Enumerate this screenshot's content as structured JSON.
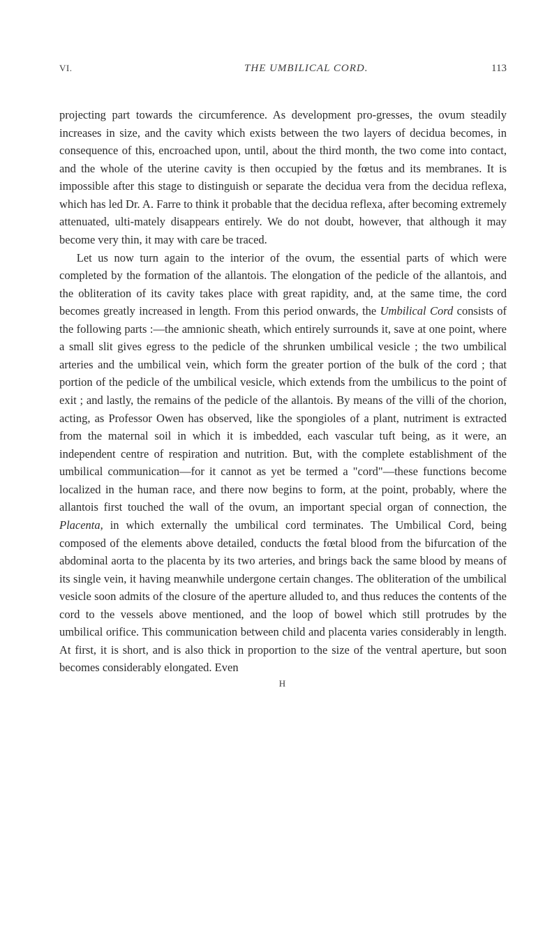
{
  "header": {
    "chapter": "VI.",
    "title": "THE UMBILICAL CORD.",
    "page": "113"
  },
  "paragraphs": {
    "p1": "projecting part towards the circumference. As development pro-gresses, the ovum steadily increases in size, and the cavity which exists between the two layers of decidua becomes, in consequence of this, encroached upon, until, about the third month, the two come into contact, and the whole of the uterine cavity is then occupied by the fœtus and its membranes. It is impossible after this stage to distinguish or separate the decidua vera from the decidua reflexa, which has led Dr. A. Farre to think it probable that the decidua reflexa, after becoming extremely attenuated, ulti-mately disappears entirely. We do not doubt, however, that although it may become very thin, it may with care be traced.",
    "p2_before_italic": "Let us now turn again to the interior of the ovum, the essential parts of which were completed by the formation of the allantois. The elongation of the pedicle of the allantois, and the obliteration of its cavity takes place with great rapidity, and, at the same time, the cord becomes greatly increased in length. From this period onwards, the ",
    "p2_italic1": "Umbilical Cord",
    "p2_mid1": " consists of the following parts :—the amnionic sheath, which entirely surrounds it, save at one point, where a small slit gives egress to the pedicle of the shrunken umbilical vesicle ; the two umbilical arteries and the umbilical vein, which form the greater portion of the bulk of the cord ; that portion of the pedicle of the umbilical vesicle, which extends from the umbilicus to the point of exit ; and lastly, the remains of the pedicle of the allantois. By means of the villi of the chorion, acting, as Professor Owen has observed, like the spongioles of a plant, nutriment is extracted from the maternal soil in which it is imbedded, each vascular tuft being, as it were, an independent centre of respiration and nutrition. But, with the complete establishment of the umbilical communication—for it cannot as yet be termed a \"cord\"—these functions become localized in the human race, and there now begins to form, at the point, probably, where the allantois first touched the wall of the ovum, an important special organ of connection, the ",
    "p2_italic2": "Placenta,",
    "p2_mid2": " in which externally the umbilical cord terminates. The Umbilical Cord, being composed of the elements above detailed, conducts the fœtal blood from the bifurcation of the abdominal aorta to the placenta by its two arteries, and brings back the same blood by means of its single vein, it having meanwhile undergone certain changes. The obliteration of the umbilical vesicle soon admits of the closure of the aperture alluded to, and thus reduces the contents of the cord to the vessels above mentioned, and the loop of bowel which still protrudes by the umbilical orifice. This communication between child and placenta varies considerably in length. At first, it is short, and is also thick in proportion to the size of the ventral aperture, but soon becomes considerably elongated. Even"
  },
  "footer": {
    "signature": "H"
  },
  "styling": {
    "background": "#ffffff",
    "text_color": "#2a2a2a",
    "header_color": "#3a3a3a",
    "body_fontsize": 16.5,
    "header_fontsize": 14,
    "line_height": 1.55,
    "font_family": "Georgia, Times New Roman, serif"
  }
}
